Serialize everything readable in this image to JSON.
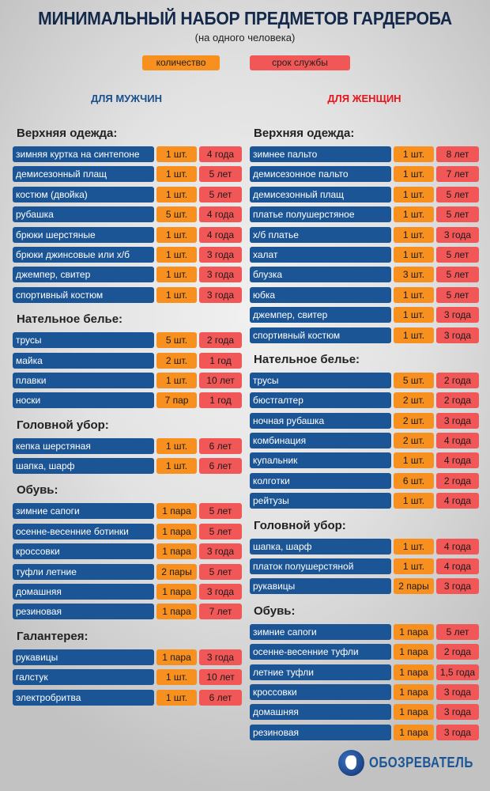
{
  "header": {
    "title": "МИНИМАЛЬНЫЙ НАБОР ПРЕДМЕТОВ ГАРДЕРОБА",
    "subtitle": "(на одного человека)"
  },
  "legend": {
    "quantity": "количество",
    "service_life": "срок службы"
  },
  "colors": {
    "item": "#1c5596",
    "quantity": "#f7901e",
    "service_life": "#f25757",
    "men": "#1a4f8f",
    "women": "#e8141b"
  },
  "men": {
    "title": "ДЛЯ МУЖЧИН",
    "sections": [
      {
        "heading": "Верхняя одежда:",
        "items": [
          {
            "name": "зимняя куртка на синтепоне",
            "qty": "1 шт.",
            "life": "4 года"
          },
          {
            "name": "демисезонный плащ",
            "qty": "1 шт.",
            "life": "5 лет"
          },
          {
            "name": "костюм (двойка)",
            "qty": "1 шт.",
            "life": "5 лет"
          },
          {
            "name": "рубашка",
            "qty": "5 шт.",
            "life": "4 года"
          },
          {
            "name": "брюки шерстяные",
            "qty": "1 шт.",
            "life": "4 года"
          },
          {
            "name": "брюки джинсовые или х/б",
            "qty": "1 шт.",
            "life": "3 года"
          },
          {
            "name": "джемпер, свитер",
            "qty": "1 шт.",
            "life": "3 года"
          },
          {
            "name": "спортивный костюм",
            "qty": "1 шт.",
            "life": "3 года"
          }
        ]
      },
      {
        "heading": "Нательное белье:",
        "items": [
          {
            "name": "трусы",
            "qty": "5 шт.",
            "life": "2 года"
          },
          {
            "name": "майка",
            "qty": "2 шт.",
            "life": "1 год"
          },
          {
            "name": "плавки",
            "qty": "1 шт.",
            "life": "10 лет"
          },
          {
            "name": "носки",
            "qty": "7 пар",
            "life": "1 год"
          }
        ]
      },
      {
        "heading": "Головной убор:",
        "items": [
          {
            "name": "кепка шерстяная",
            "qty": "1 шт.",
            "life": "6 лет"
          },
          {
            "name": "шапка, шарф",
            "qty": "1 шт.",
            "life": "6 лет"
          }
        ]
      },
      {
        "heading": "Обувь:",
        "items": [
          {
            "name": "зимние сапоги",
            "qty": "1 пара",
            "life": "5 лет"
          },
          {
            "name": "осенне-весенние ботинки",
            "qty": "1 пара",
            "life": "5 лет"
          },
          {
            "name": "кроссовки",
            "qty": "1 пара",
            "life": "3 года"
          },
          {
            "name": "туфли летние",
            "qty": "2 пары",
            "life": "5 лет"
          },
          {
            "name": "домашняя",
            "qty": "1 пара",
            "life": "3 года"
          },
          {
            "name": "резиновая",
            "qty": "1 пара",
            "life": "7 лет"
          }
        ]
      },
      {
        "heading": "Галантерея:",
        "items": [
          {
            "name": "рукавицы",
            "qty": "1 пара",
            "life": "3 года"
          },
          {
            "name": "галстук",
            "qty": "1 шт.",
            "life": "10 лет"
          },
          {
            "name": "электробритва",
            "qty": "1 шт.",
            "life": "6 лет"
          }
        ]
      }
    ]
  },
  "women": {
    "title": "ДЛЯ ЖЕНЩИН",
    "sections": [
      {
        "heading": "Верхняя одежда:",
        "items": [
          {
            "name": "зимнее пальто",
            "qty": "1 шт.",
            "life": "8 лет"
          },
          {
            "name": "демисезонное пальто",
            "qty": "1 шт.",
            "life": "7 лет"
          },
          {
            "name": "демисезонный плащ",
            "qty": "1 шт.",
            "life": "5 лет"
          },
          {
            "name": "платье полушерстяное",
            "qty": "1 шт.",
            "life": "5 лет"
          },
          {
            "name": "х/б платье",
            "qty": "1 шт.",
            "life": "3 года"
          },
          {
            "name": "халат",
            "qty": "1 шт.",
            "life": "5 лет"
          },
          {
            "name": "блузка",
            "qty": "3 шт.",
            "life": "5 лет"
          },
          {
            "name": "юбка",
            "qty": "1 шт.",
            "life": "5 лет"
          },
          {
            "name": "джемпер, свитер",
            "qty": "1 шт.",
            "life": "3 года"
          },
          {
            "name": "спортивный костюм",
            "qty": "1 шт.",
            "life": "3 года"
          }
        ]
      },
      {
        "heading": "Нательное белье:",
        "items": [
          {
            "name": "трусы",
            "qty": "5  шт.",
            "life": "2 года"
          },
          {
            "name": "бюстгалтер",
            "qty": "2 шт.",
            "life": "2 года"
          },
          {
            "name": "ночная рубашка",
            "qty": "2 шт.",
            "life": "3 года"
          },
          {
            "name": "комбинация",
            "qty": "2 шт.",
            "life": "4 года"
          },
          {
            "name": "купальник",
            "qty": "1 шт.",
            "life": "4 года"
          },
          {
            "name": "колготки",
            "qty": "6 шт.",
            "life": "2 года"
          },
          {
            "name": "рейтузы",
            "qty": "1  шт.",
            "life": "4 года"
          }
        ]
      },
      {
        "heading": "Головной убор:",
        "items": [
          {
            "name": "шапка, шарф",
            "qty": "1 шт.",
            "life": "4 года"
          },
          {
            "name": "платок полушерстяной",
            "qty": "1 шт.",
            "life": "4 года"
          },
          {
            "name": "рукавицы",
            "qty": "2 пары",
            "life": "3 года"
          }
        ]
      },
      {
        "heading": "Обувь:",
        "items": [
          {
            "name": "зимние сапоги",
            "qty": "1 пара",
            "life": "5 лет"
          },
          {
            "name": "осенне-весенние туфли",
            "qty": "1 пара",
            "life": "2 года"
          },
          {
            "name": "летние туфли",
            "qty": "1 пара",
            "life": "1,5 года"
          },
          {
            "name": "кроссовки",
            "qty": "1 пара",
            "life": "3 года"
          },
          {
            "name": "домашняя",
            "qty": "1 пара",
            "life": "3 года"
          },
          {
            "name": "резиновая",
            "qty": "1 пара",
            "life": "3 года"
          }
        ]
      }
    ]
  },
  "logo": {
    "text": "ОБОЗРЕВАТЕЛЬ",
    "icon": "globe-icon"
  }
}
